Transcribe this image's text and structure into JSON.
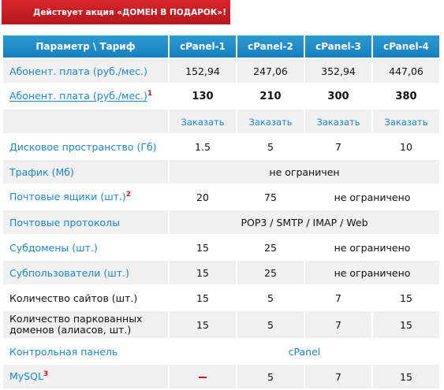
{
  "promo": {
    "text": "Действует акция «ДОМЕН В ПОДАРОК»!"
  },
  "table": {
    "header": {
      "param": "Параметр \\ Тариф",
      "plans": [
        "cPanel-1",
        "cPanel-2",
        "cPanel-3",
        "cPanel-4"
      ]
    },
    "rows": {
      "fee": {
        "label": "Абонент. плата (руб./мес.)",
        "values": [
          "152,94",
          "247,06",
          "352,94",
          "447,06"
        ]
      },
      "fee2": {
        "label": "Абонент. плата (руб./мес.)",
        "footnote": "1",
        "values": [
          "130",
          "210",
          "300",
          "380"
        ]
      },
      "order": {
        "values": [
          "Заказать",
          "Заказать",
          "Заказать",
          "Заказать"
        ]
      },
      "disk": {
        "label": "Дисковое пространство (Гб)",
        "values": [
          "1.5",
          "5",
          "7",
          "10"
        ]
      },
      "traffic": {
        "label": "Трафик (Мб)",
        "value": "не ограничен"
      },
      "mailboxes": {
        "label": "Почтовые ящики (шт.)",
        "footnote": "2",
        "values": [
          "20",
          "75"
        ],
        "rest": "не ограничено"
      },
      "protocols": {
        "label": "Почтовые протоколы",
        "value": "POP3 / SMTP / IMAP / Web"
      },
      "subdomains": {
        "label": "Субдомены (шт.)",
        "values": [
          "15",
          "25"
        ],
        "rest": "не ограничено"
      },
      "subusers": {
        "label": "Субпользователи (шт.)",
        "values": [
          "15",
          "25"
        ],
        "rest": "не ограничено"
      },
      "sites": {
        "label": "Количество сайтов (шт.)",
        "values": [
          "15",
          "5",
          "7",
          "15"
        ]
      },
      "parked": {
        "label": "Количество паркованных доменов (алиасов, шт.)",
        "values": [
          "15",
          "5",
          "7",
          "15"
        ]
      },
      "panel": {
        "label": "Контрольная панель",
        "value": "cPanel"
      },
      "mysql": {
        "label": "MySQL",
        "footnote": "3",
        "values": [
          "5",
          "7",
          "15"
        ]
      }
    }
  }
}
